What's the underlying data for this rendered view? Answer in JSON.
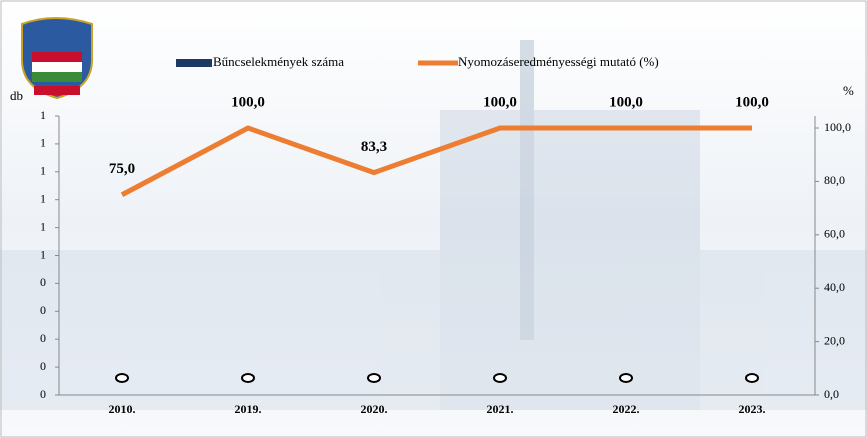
{
  "chart_data": {
    "type": "bar_line",
    "categories": [
      "2010.",
      "2019.",
      "2020.",
      "2021.",
      "2022.",
      "2023."
    ],
    "series": [
      {
        "name": "Bűncselekmények száma",
        "color": "#1f3864",
        "values": [
          0,
          0,
          0,
          0,
          0,
          0
        ]
      },
      {
        "name": "Nyomozáseredményességi mutató (%)",
        "color": "#ed7d31",
        "axis": "y2",
        "values": [
          75,
          100,
          83.3,
          100,
          100,
          100
        ],
        "value_labels": [
          "75,0",
          "100,0",
          "83,3",
          "100,0",
          "100,0",
          "100,0"
        ]
      }
    ],
    "ylabel": "db",
    "y2label": "%",
    "ylim": [
      0,
      1
    ],
    "yticks": [
      0,
      {
        "value": 0.1,
        "label": "0"
      },
      {
        "value": 0.2,
        "label": "0"
      },
      {
        "value": 0.3,
        "label": "0"
      },
      {
        "value": 0.4,
        "label": "0"
      },
      {
        "value": 0.5,
        "label": "1"
      },
      {
        "value": 0.6,
        "label": "1"
      },
      {
        "value": 0.7,
        "label": "1"
      },
      {
        "value": 0.8,
        "label": "1"
      },
      {
        "value": 0.9,
        "label": "1"
      },
      1
    ],
    "y2lim": [
      0,
      104.5
    ],
    "y2ticks": [
      {
        "value": 0,
        "label": "0,0"
      },
      {
        "value": 20,
        "label": "20,0"
      },
      {
        "value": 40,
        "label": "40,0"
      },
      {
        "value": 60,
        "label": "60,0"
      },
      {
        "value": 80,
        "label": "80,0"
      },
      {
        "value": 100,
        "label": "100,0"
      }
    ]
  }
}
